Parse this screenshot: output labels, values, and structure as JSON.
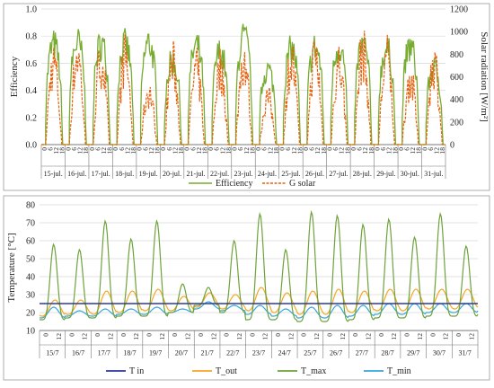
{
  "chart_data": [
    {
      "type": "line",
      "ylabel_left": "Efficiency",
      "ylabel_right": "Solar radiation [W/m²]",
      "ylim_left": [
        0,
        1.0
      ],
      "ylim_right": [
        0,
        1200
      ],
      "yticks_left": [
        "0.0",
        "0.2",
        "0.4",
        "0.6",
        "0.8",
        "1.0"
      ],
      "yticks_right": [
        "0",
        "200",
        "400",
        "600",
        "800",
        "1000",
        "1200"
      ],
      "hour_ticks": [
        "0",
        "6",
        "12",
        "18"
      ],
      "days": [
        "15-jul.",
        "16-jul.",
        "17-jul.",
        "18-jul.",
        "19-jul.",
        "20-jul.",
        "21-jul.",
        "22-jul.",
        "23-jul.",
        "24-jul.",
        "25-jul.",
        "26-jul.",
        "27-jul.",
        "28-jul.",
        "29-jul.",
        "30-jul.",
        "31-jul."
      ],
      "legend_position": "bottom",
      "grid": "horizontal",
      "series": [
        {
          "name": "Efficiency",
          "axis": "left",
          "style": "solid",
          "color": "#77AC30",
          "daily_peak": [
            0.86,
            0.88,
            0.87,
            0.86,
            0.88,
            0.72,
            0.85,
            0.8,
            0.92,
            0.65,
            0.82,
            0.84,
            0.85,
            0.86,
            0.82,
            0.84,
            0.66
          ]
        },
        {
          "name": "G solar",
          "axis": "right",
          "style": "dashed",
          "color": "#E8600C",
          "daily_peak": [
            950,
            1040,
            980,
            1000,
            620,
            940,
            870,
            880,
            1000,
            540,
            980,
            1020,
            940,
            1070,
            1010,
            760,
            960
          ]
        }
      ]
    },
    {
      "type": "line",
      "ylabel": "Temperature [°C]",
      "ylim": [
        10,
        80
      ],
      "yticks": [
        "10",
        "20",
        "30",
        "40",
        "50",
        "60",
        "70",
        "80"
      ],
      "hour_ticks": [
        "0",
        "12"
      ],
      "days": [
        "15/7",
        "16/7",
        "17/7",
        "18/7",
        "19/7",
        "20/7",
        "21/7",
        "22/7",
        "23/7",
        "24/7",
        "25/7",
        "26/7",
        "27/7",
        "28/7",
        "29/7",
        "30/7",
        "31/7"
      ],
      "legend_position": "bottom",
      "grid": "horizontal",
      "series": [
        {
          "name": "T in",
          "color": "#2B3A9B",
          "constant": 25
        },
        {
          "name": "T_out",
          "color": "#F5A623",
          "daily_max": [
            27,
            27,
            32,
            32,
            33,
            29,
            31,
            30,
            34,
            31,
            32,
            33,
            32,
            33,
            33,
            33,
            33
          ],
          "daily_min": [
            18,
            19,
            19,
            20,
            21,
            21,
            23,
            22,
            21,
            20,
            19,
            19,
            20,
            21,
            21,
            22,
            22
          ]
        },
        {
          "name": "T_max",
          "color": "#6DA33A",
          "daily_max": [
            58,
            55,
            71,
            61,
            71,
            36,
            34,
            60,
            75,
            55,
            76,
            74,
            69,
            72,
            62,
            75,
            57
          ],
          "daily_min": [
            16,
            17,
            17,
            18,
            18,
            20,
            24,
            20,
            16,
            16,
            15,
            15,
            16,
            17,
            17,
            18,
            18
          ]
        },
        {
          "name": "T_min",
          "color": "#3AA5DC",
          "daily_max": [
            23,
            21,
            22,
            22,
            23,
            22,
            26,
            24,
            24,
            22,
            23,
            24,
            24,
            25,
            25,
            25,
            25
          ],
          "daily_min": [
            17,
            18,
            18,
            19,
            19,
            20,
            22,
            21,
            19,
            18,
            17,
            17,
            18,
            19,
            19,
            20,
            20
          ]
        }
      ]
    }
  ]
}
